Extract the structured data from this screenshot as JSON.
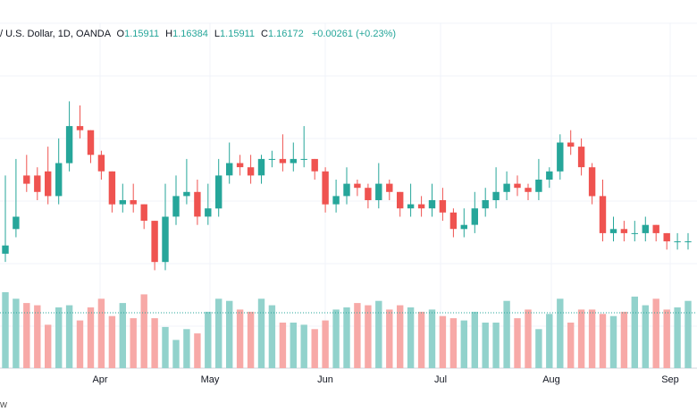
{
  "header": {
    "symbol": "/ U.S. Dollar, 1D, OANDA",
    "o_label": "O",
    "o_value": "1.15911",
    "h_label": "H",
    "h_value": "1.16384",
    "l_label": "L",
    "l_value": "1.15911",
    "c_label": "C",
    "c_value": "1.16172",
    "change": "+0.00261 (+0.23%)"
  },
  "footer": {
    "brand_fragment": "w"
  },
  "colors": {
    "up": "#26a69a",
    "down": "#ef5350",
    "up_vol": "#92d2cc",
    "down_vol": "#f7a9a7",
    "grid": "#f0f3fa"
  },
  "chart_data": {
    "type": "candlestick",
    "interval": "1D",
    "x_labels": [
      "Apr",
      "May",
      "Jun",
      "Jul",
      "Aug",
      "Sep"
    ],
    "grid": true,
    "ohlc": [
      [
        0.0,
        119.0,
        121.0,
        138.0
      ],
      [
        0.0,
        125.0,
        128.0,
        142.0
      ],
      [
        0.0,
        138.0,
        136.0,
        143.0
      ],
      [
        0.0,
        138.0,
        134.0,
        140.0
      ],
      [
        0.0,
        139.0,
        133.0,
        145.0
      ],
      [
        0.0,
        133.0,
        141.0,
        147.0
      ],
      [
        0.0,
        141.0,
        150.0,
        156.0
      ],
      [
        0.0,
        150.0,
        149.0,
        155.0
      ],
      [
        0.0,
        149.0,
        143.0,
        149.0
      ],
      [
        0.0,
        143.0,
        139.0,
        144.0
      ],
      [
        0.0,
        139.0,
        131.0,
        139.0
      ],
      [
        0.0,
        131.0,
        132.0,
        136.0
      ],
      [
        0.0,
        132.0,
        131.0,
        136.0
      ],
      [
        0.0,
        131.0,
        127.0,
        129.0
      ],
      [
        0.0,
        127.0,
        117.0,
        124.0
      ],
      [
        0.0,
        117.0,
        128.0,
        136.0
      ],
      [
        0.0,
        128.0,
        133.0,
        138.0
      ],
      [
        0.0,
        133.0,
        134.0,
        142.0
      ],
      [
        0.0,
        134.0,
        128.0,
        137.0
      ],
      [
        0.0,
        128.0,
        130.0,
        136.0
      ],
      [
        0.0,
        130.0,
        138.0,
        142.0
      ],
      [
        0.0,
        138.0,
        141.0,
        146.0
      ],
      [
        0.0,
        141.0,
        140.0,
        143.0
      ],
      [
        0.0,
        140.0,
        138.0,
        143.0
      ],
      [
        0.0,
        138.0,
        142.0,
        143.0
      ],
      [
        0.0,
        142.0,
        142.0,
        144.0
      ],
      [
        0.0,
        142.0,
        141.0,
        148.0
      ],
      [
        0.0,
        141.0,
        142.0,
        146.0
      ],
      [
        0.0,
        142.0,
        142.0,
        150.0
      ],
      [
        0.0,
        142.0,
        139.0,
        142.0
      ],
      [
        0.0,
        139.0,
        131.0,
        140.0
      ],
      [
        0.0,
        131.0,
        133.0,
        137.0
      ],
      [
        0.0,
        133.0,
        136.0,
        140.0
      ],
      [
        0.0,
        136.0,
        135.0,
        137.0
      ],
      [
        0.0,
        135.0,
        132.0,
        136.0
      ],
      [
        0.0,
        132.0,
        136.0,
        141.0
      ],
      [
        0.0,
        136.0,
        134.0,
        137.0
      ],
      [
        0.0,
        134.0,
        130.0,
        134.0
      ],
      [
        0.0,
        130.0,
        131.0,
        136.0
      ],
      [
        0.0,
        131.0,
        130.0,
        133.0
      ],
      [
        0.0,
        130.0,
        132.0,
        136.0
      ],
      [
        0.0,
        132.0,
        129.0,
        135.0
      ],
      [
        0.0,
        129.0,
        125.0,
        130.0
      ],
      [
        0.0,
        125.0,
        126.0,
        130.0
      ],
      [
        0.0,
        126.0,
        130.0,
        134.0
      ],
      [
        0.0,
        130.0,
        132.0,
        135.0
      ],
      [
        0.0,
        132.0,
        134.0,
        140.0
      ],
      [
        0.0,
        134.0,
        136.0,
        139.0
      ],
      [
        0.0,
        136.0,
        135.0,
        138.0
      ],
      [
        0.0,
        135.0,
        134.0,
        136.0
      ],
      [
        0.0,
        134.0,
        137.0,
        142.0
      ],
      [
        0.0,
        137.0,
        139.0,
        140.0
      ],
      [
        0.0,
        139.0,
        146.0,
        148.0
      ],
      [
        0.0,
        146.0,
        145.0,
        149.0
      ],
      [
        0.0,
        145.0,
        140.0,
        147.0
      ],
      [
        0.0,
        140.0,
        133.0,
        141.0
      ],
      [
        0.0,
        133.0,
        124.0,
        137.0
      ],
      [
        0.0,
        124.0,
        125.0,
        128.0
      ],
      [
        0.0,
        125.0,
        124.0,
        127.0
      ],
      [
        0.0,
        124.0,
        124.0,
        127.0
      ],
      [
        0.0,
        124.0,
        126.0,
        128.0
      ],
      [
        0.0,
        126.0,
        124.0,
        126.0
      ],
      [
        0.0,
        124.0,
        122.0,
        124.0
      ],
      [
        0.0,
        122.0,
        122.0,
        124.0
      ],
      [
        0.0,
        122.0,
        122.0,
        124.0
      ]
    ],
    "note": "values above are read on a relative scale; no price axis is printed",
    "volume": [
      35,
      32,
      30,
      29,
      20,
      28,
      29,
      22,
      28,
      32,
      24,
      30,
      23,
      34,
      23,
      19,
      13,
      18,
      16,
      26,
      32,
      31,
      27,
      26,
      32,
      29,
      21,
      21,
      20,
      18,
      22,
      27,
      28,
      30,
      29,
      31,
      27,
      29,
      28,
      26,
      27,
      24,
      23,
      22,
      26,
      21,
      21,
      31,
      23,
      27,
      18,
      25,
      32,
      21,
      27,
      27,
      25,
      24,
      26,
      33,
      29,
      32,
      27,
      28,
      31
    ]
  }
}
